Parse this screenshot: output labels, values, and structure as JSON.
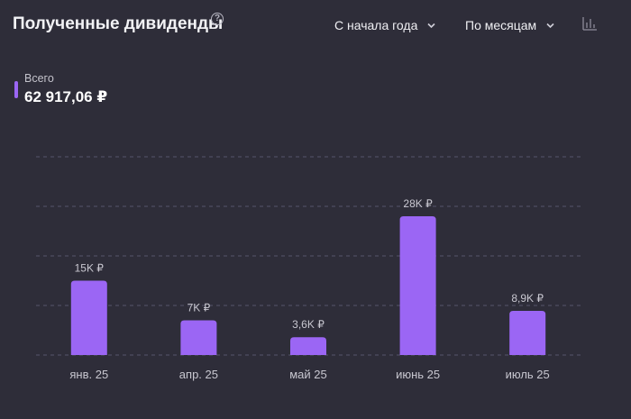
{
  "header": {
    "title": "Полученные дивиденды",
    "help_icon": "question-circle-icon",
    "period_select": "С начала года",
    "group_select": "По месяцам",
    "chart_type_icon": "bar-chart-icon"
  },
  "total": {
    "label": "Всего",
    "value": "62 917,06 ₽",
    "marker_color": "#9b66f4"
  },
  "colors": {
    "background": "#2e2d39",
    "bar": "#9b66f4",
    "grid": "#56556a"
  },
  "chart_data": {
    "type": "bar",
    "categories": [
      "янв. 25",
      "апр. 25",
      "май 25",
      "июнь 25",
      "июль 25"
    ],
    "values": [
      15000,
      7000,
      3600,
      28000,
      8900
    ],
    "data_labels": [
      "15K ₽",
      "7K ₽",
      "3,6K ₽",
      "28K ₽",
      "8,9K ₽"
    ],
    "ylim": [
      0,
      40000
    ],
    "grid": true
  }
}
